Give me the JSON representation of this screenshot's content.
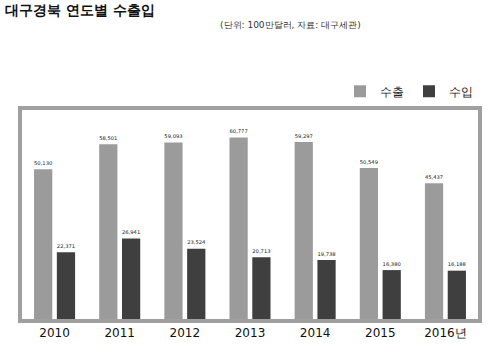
{
  "chart_data": {
    "type": "bar",
    "title": "대구경북 연도별 수출입",
    "subtitle": "(단위: 100만달러, 자료: 대구세관)",
    "categories": [
      "2010",
      "2011",
      "2012",
      "2013",
      "2014",
      "2015",
      "2016년"
    ],
    "series": [
      {
        "name": "수출",
        "color": "#9b9b9b",
        "values": [
          50130,
          58501,
          59093,
          60777,
          59297,
          50549,
          45437
        ],
        "value_labels": [
          "50,130",
          "58,501",
          "59,093",
          "60,777",
          "59,297",
          "50,549",
          "45,437"
        ]
      },
      {
        "name": "수입",
        "color": "#3f3f3f",
        "values": [
          22371,
          26941,
          23524,
          20713,
          19738,
          16380,
          16188
        ],
        "value_labels": [
          "22,371",
          "26,941",
          "23,524",
          "20,713",
          "19,738",
          "16,380",
          "16,188"
        ]
      }
    ],
    "ylim": [
      0,
      70000
    ],
    "yticks": [],
    "grid": false,
    "legend": "top right",
    "data_labels": true,
    "tick_labels": "x"
  }
}
